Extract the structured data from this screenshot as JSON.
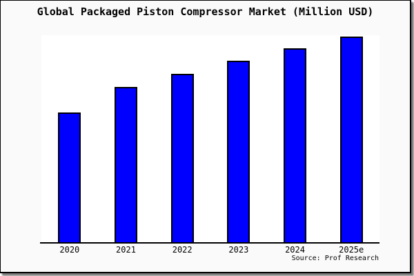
{
  "window": {
    "background_color": "#fafafa",
    "frame_border_color": "#000000",
    "shadow_color": "#777777"
  },
  "chart_data": {
    "type": "bar",
    "title": "Global Packaged Piston Compressor Market (Million USD)",
    "categories": [
      "2020",
      "2021",
      "2022",
      "2023",
      "2024",
      "2025e"
    ],
    "values_pct_of_plot_height": [
      62.7,
      75.0,
      81.3,
      87.7,
      93.7,
      99.3
    ],
    "xlabel": "",
    "ylabel": "",
    "y_axis_labels_visible": false,
    "grid": false,
    "legend": false,
    "plot_background": "#ffffff",
    "bar_fill_color": "#0000ff",
    "bar_border_color": "#000000",
    "axis_line_color": "#000000",
    "source_note": "Source: Prof Research"
  }
}
